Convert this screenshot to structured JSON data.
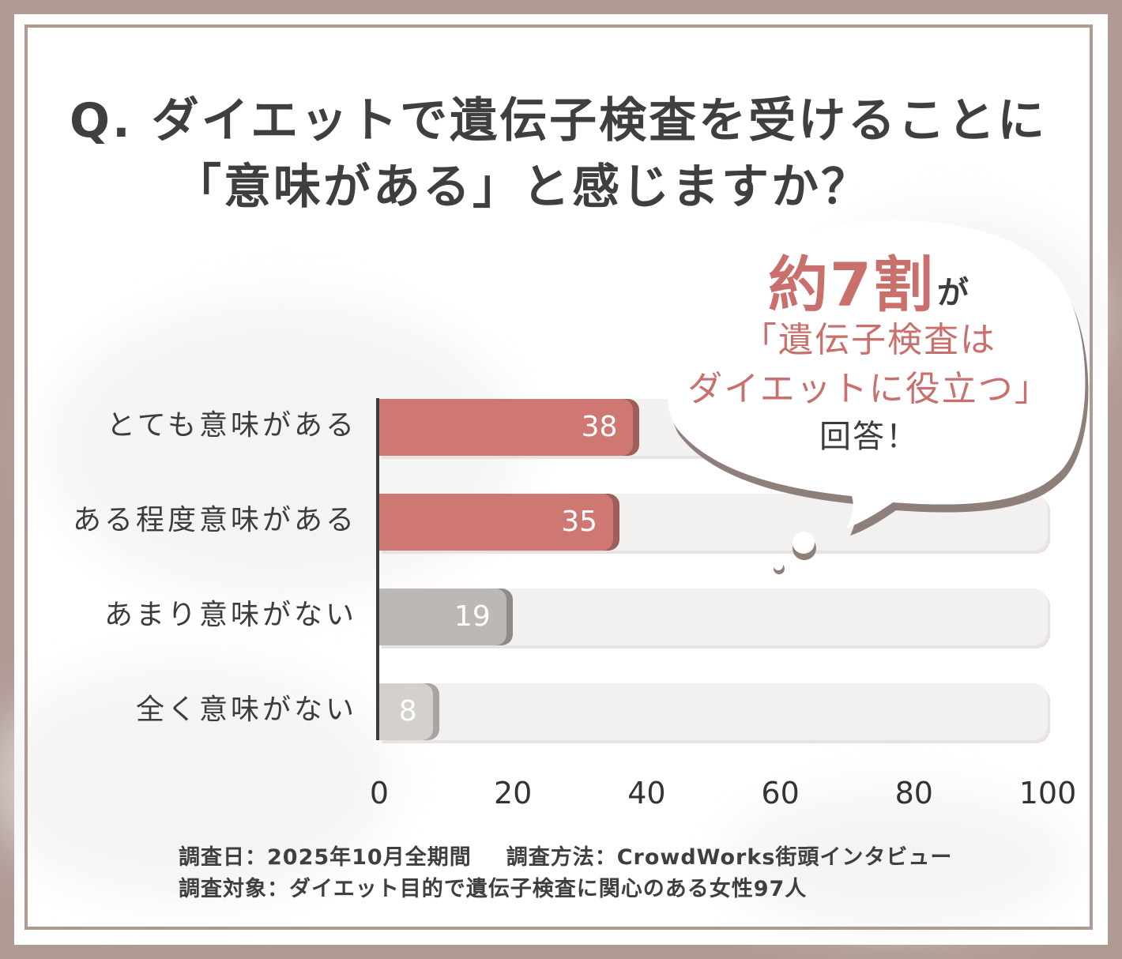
{
  "title": {
    "line1": "Q. ダイエットで遺伝子検査を受けることに",
    "line2": "「意味がある」と感じますか？"
  },
  "callout": {
    "headline": "約7割",
    "particle": "が",
    "quote_line1": "「遺伝子検査は",
    "quote_line2": "ダイエットに役立つ」",
    "ending": "回答！"
  },
  "chart_data": {
    "type": "bar",
    "orientation": "horizontal",
    "categories": [
      "とても意味がある",
      "ある程度意味がある",
      "あまり意味がない",
      "全く意味がない"
    ],
    "values": [
      38,
      35,
      19,
      8
    ],
    "colors": [
      "#cf7873",
      "#cf7873",
      "#bdb8b6",
      "#d4d0ce"
    ],
    "xlim": [
      0,
      100
    ],
    "xticks": [
      "0",
      "20",
      "40",
      "60",
      "80",
      "100"
    ],
    "grid": false,
    "legend": "none"
  },
  "footer": {
    "line1a": "調査日：2025年10月全期間",
    "line1b": "調査方法：CrowdWorks街頭インタビュー",
    "line2": "調査対象：ダイエット目的で遺伝子検査に関心のある女性97人"
  },
  "colors": {
    "frame": "#b09a94",
    "accent": "#c9706d",
    "bar_high": "#cf7873",
    "bar_mid": "#bdb8b6",
    "bar_low": "#d4d0ce",
    "track": "#f3f1f0"
  }
}
